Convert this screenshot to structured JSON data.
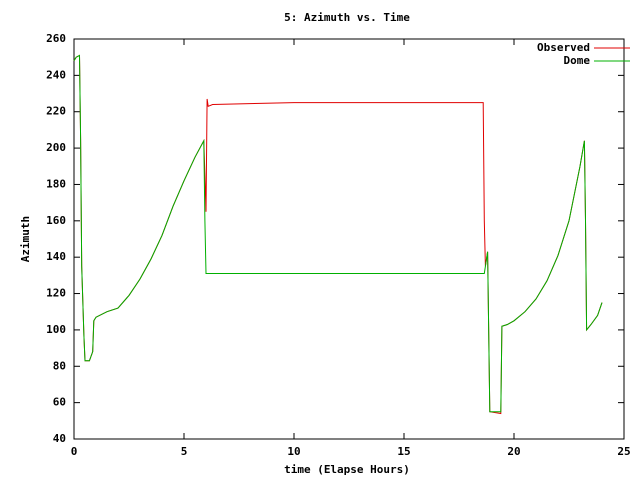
{
  "chart_data": {
    "type": "line",
    "title": "5: Azimuth vs. Time",
    "x_label": "time (Elapse Hours)",
    "y_label": "Azimuth",
    "x": [
      0,
      0.1,
      0.25,
      0.3,
      0.35,
      0.45,
      0.5,
      0.7,
      0.85,
      0.9,
      1.0,
      1.5,
      2.0,
      2.5,
      3.0,
      3.5,
      4.0,
      4.5,
      5.0,
      5.5,
      5.9,
      5.95,
      6.0,
      6.05,
      6.1,
      6.3,
      10,
      15,
      18.6,
      18.65,
      18.7,
      18.8,
      18.9,
      19.4,
      19.45,
      19.7,
      20,
      20.5,
      21,
      21.5,
      22,
      22.5,
      23,
      23.2,
      23.25,
      23.3,
      23.5,
      23.8,
      24
    ],
    "series": [
      {
        "name": "Observed",
        "color": "#e00000",
        "values": [
          248,
          250,
          251,
          205,
          135,
          97,
          83,
          83,
          88,
          105,
          107,
          110,
          112,
          119,
          128,
          139,
          152,
          168,
          182,
          195,
          204,
          185,
          165,
          227,
          223,
          224,
          225,
          225,
          225,
          160,
          135,
          143,
          55,
          54,
          102,
          103,
          105,
          110,
          117,
          127,
          141,
          160,
          190,
          204,
          160,
          100,
          103,
          108,
          115
        ]
      },
      {
        "name": "Dome",
        "color": "#00b000",
        "values": [
          248,
          250,
          251,
          205,
          135,
          97,
          83,
          83,
          88,
          105,
          107,
          110,
          112,
          119,
          128,
          139,
          152,
          168,
          182,
          195,
          204,
          160,
          131,
          131,
          131,
          131,
          131,
          131,
          131,
          131,
          135,
          143,
          55,
          55,
          102,
          103,
          105,
          110,
          117,
          127,
          141,
          160,
          190,
          204,
          160,
          100,
          103,
          108,
          115
        ]
      }
    ],
    "xlim": [
      0,
      25
    ],
    "xticks": [
      0,
      5,
      10,
      15,
      20,
      25
    ],
    "ylim": [
      40,
      260
    ],
    "yticks": [
      40,
      60,
      80,
      100,
      120,
      140,
      160,
      180,
      200,
      220,
      240,
      260
    ],
    "legend": "top-right"
  }
}
